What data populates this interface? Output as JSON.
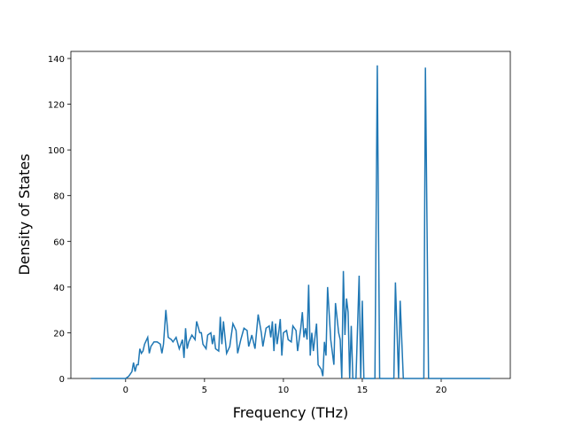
{
  "chart_data": {
    "type": "line",
    "x_label": "Frequency (THz)",
    "y_label": "Density of States",
    "xlim": [
      -3.47,
      24.38
    ],
    "ylim": [
      0,
      143.1
    ],
    "xticks": [
      0,
      5,
      10,
      15,
      20
    ],
    "yticks": [
      0,
      20,
      40,
      60,
      80,
      100,
      120,
      140
    ],
    "x": [
      -2.2,
      0,
      0.2,
      0.4,
      0.5,
      0.6,
      0.7,
      0.8,
      0.9,
      1.0,
      1.1,
      1.2,
      1.4,
      1.5,
      1.6,
      1.8,
      2.0,
      2.2,
      2.3,
      2.4,
      2.55,
      2.7,
      2.9,
      3.0,
      3.2,
      3.4,
      3.6,
      3.7,
      3.8,
      3.9,
      4.0,
      4.2,
      4.4,
      4.5,
      4.7,
      4.8,
      4.9,
      5.1,
      5.2,
      5.4,
      5.5,
      5.6,
      5.7,
      5.9,
      6.0,
      6.1,
      6.2,
      6.4,
      6.6,
      6.8,
      7.0,
      7.1,
      7.3,
      7.5,
      7.7,
      7.8,
      8.0,
      8.2,
      8.4,
      8.6,
      8.7,
      8.9,
      9.1,
      9.2,
      9.3,
      9.4,
      9.5,
      9.6,
      9.7,
      9.8,
      9.9,
      10.0,
      10.2,
      10.3,
      10.5,
      10.6,
      10.8,
      10.9,
      11.1,
      11.2,
      11.3,
      11.4,
      11.5,
      11.6,
      11.7,
      11.8,
      11.9,
      12.1,
      12.2,
      12.4,
      12.5,
      12.6,
      12.7,
      12.8,
      13.0,
      13.2,
      13.3,
      13.5,
      13.6,
      13.7,
      13.8,
      13.9,
      14.0,
      14.1,
      14.2,
      14.3,
      14.4,
      14.6,
      14.8,
      14.9,
      15.0,
      15.1,
      15.8,
      15.95,
      16.1,
      17.0,
      17.1,
      17.3,
      17.4,
      17.6,
      18.9,
      19.0,
      19.2,
      23.1
    ],
    "series": [
      {
        "color": "#1f77b4",
        "values": [
          0,
          0,
          1,
          3,
          7,
          3,
          6,
          6,
          13,
          11,
          12,
          15,
          18,
          11,
          14,
          16,
          16,
          15,
          11,
          15,
          30,
          18,
          17,
          16,
          18,
          13,
          17,
          9,
          22,
          13,
          16,
          19,
          17,
          25,
          20,
          20,
          15,
          13,
          19,
          20,
          15,
          19,
          13,
          12,
          27,
          15,
          25,
          11,
          14,
          24,
          21,
          11,
          17,
          22,
          21,
          14,
          19,
          13,
          28,
          20,
          14,
          22,
          23,
          18,
          25,
          12,
          24,
          15,
          20,
          26,
          10,
          20,
          21,
          17,
          16,
          23,
          21,
          12,
          22,
          29,
          18,
          22,
          17,
          41,
          10,
          20,
          12,
          24,
          6,
          4,
          1,
          16,
          10,
          40,
          17,
          6,
          33,
          20,
          17,
          0,
          47,
          19,
          35,
          29,
          0,
          23,
          0,
          0,
          45,
          0,
          34,
          0,
          0,
          137,
          0,
          0,
          42,
          0,
          34,
          0,
          0,
          136,
          0,
          0
        ]
      }
    ]
  }
}
